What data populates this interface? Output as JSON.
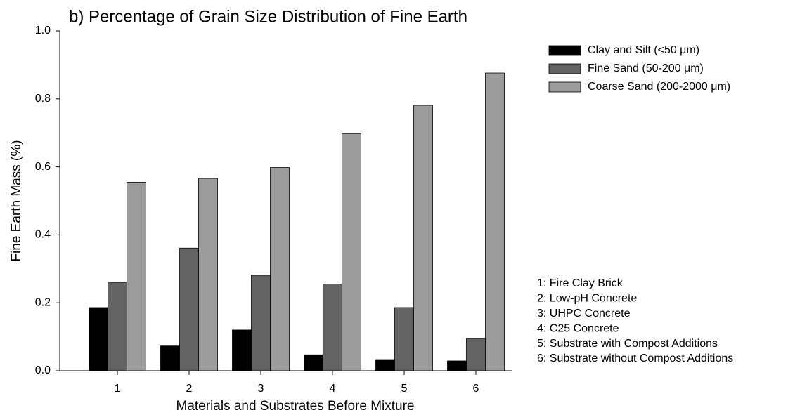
{
  "chart_data": {
    "type": "bar",
    "title": "b) Percentage of Grain Size Distribution of Fine Earth",
    "x_label": "Materials and Substrates Before Mixture",
    "y_label": "Fine Earth Mass (%)",
    "categories": [
      "1",
      "2",
      "3",
      "4",
      "5",
      "6"
    ],
    "series": [
      {
        "name": "Clay and Silt (<50 μm)",
        "color": "#000000",
        "values": [
          0.186,
          0.073,
          0.12,
          0.047,
          0.033,
          0.029
        ]
      },
      {
        "name": "Fine Sand (50-200 μm)",
        "color": "#636363",
        "values": [
          0.259,
          0.361,
          0.281,
          0.255,
          0.186,
          0.095
        ]
      },
      {
        "name": "Coarse Sand (200-2000 μm)",
        "color": "#9c9c9c",
        "values": [
          0.555,
          0.566,
          0.598,
          0.698,
          0.781,
          0.876
        ]
      }
    ],
    "ylim": [
      0,
      1
    ],
    "yticks": [
      {
        "value": 0,
        "label": "0.0"
      },
      0.2,
      0.4,
      0.6,
      0.8,
      {
        "value": 1,
        "label": "1.0"
      }
    ],
    "grid": false,
    "legend": "top-right",
    "notes": [
      "1: Fire Clay Brick",
      "2: Low-pH Concrete",
      "3: UHPC Concrete",
      "4: C25 Concrete",
      "5: Substrate with Compost Additions",
      "6: Substrate without Compost Additions"
    ]
  }
}
